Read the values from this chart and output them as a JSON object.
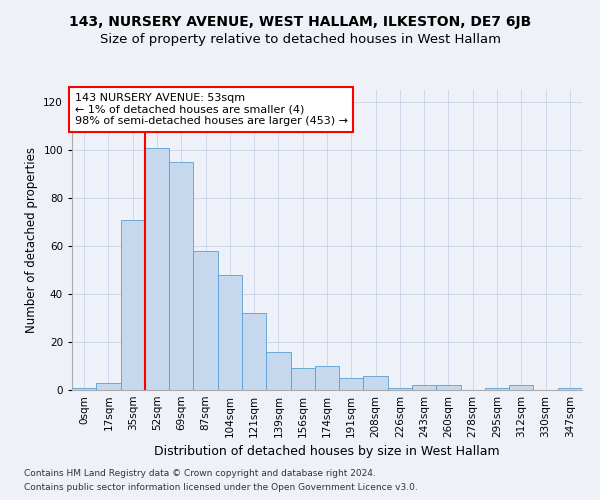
{
  "title": "143, NURSERY AVENUE, WEST HALLAM, ILKESTON, DE7 6JB",
  "subtitle": "Size of property relative to detached houses in West Hallam",
  "xlabel": "Distribution of detached houses by size in West Hallam",
  "ylabel": "Number of detached properties",
  "footnote1": "Contains HM Land Registry data © Crown copyright and database right 2024.",
  "footnote2": "Contains public sector information licensed under the Open Government Licence v3.0.",
  "bar_labels": [
    "0sqm",
    "17sqm",
    "35sqm",
    "52sqm",
    "69sqm",
    "87sqm",
    "104sqm",
    "121sqm",
    "139sqm",
    "156sqm",
    "174sqm",
    "191sqm",
    "208sqm",
    "226sqm",
    "243sqm",
    "260sqm",
    "278sqm",
    "295sqm",
    "312sqm",
    "330sqm",
    "347sqm"
  ],
  "bar_heights": [
    1,
    3,
    71,
    101,
    95,
    58,
    48,
    32,
    16,
    9,
    10,
    5,
    6,
    1,
    2,
    2,
    0,
    1,
    2,
    0,
    1
  ],
  "bar_color": "#c5d8ed",
  "bar_edge_color": "#5a9fd4",
  "annotation_line1": "143 NURSERY AVENUE: 53sqm",
  "annotation_line2": "← 1% of detached houses are smaller (4)",
  "annotation_line3": "98% of semi-detached houses are larger (453) →",
  "annotation_box_color": "white",
  "annotation_box_edge_color": "red",
  "vline_x": 2.5,
  "vline_color": "red",
  "ylim": [
    0,
    125
  ],
  "yticks": [
    0,
    20,
    40,
    60,
    80,
    100,
    120
  ],
  "background_color": "#eef2f8",
  "grid_color": "#c8d4e8",
  "title_fontsize": 10,
  "subtitle_fontsize": 9.5,
  "xlabel_fontsize": 9,
  "ylabel_fontsize": 8.5,
  "tick_fontsize": 7.5,
  "annotation_fontsize": 8,
  "footnote_fontsize": 6.5
}
